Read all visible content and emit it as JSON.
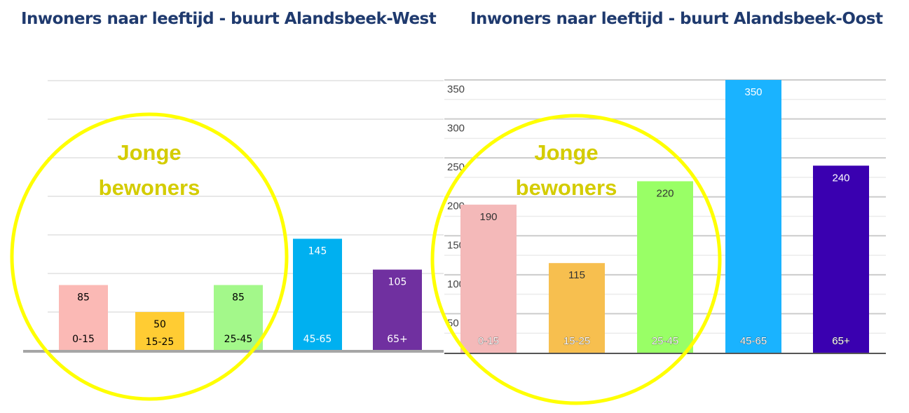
{
  "chart_data": [
    {
      "type": "bar",
      "title": "Inwoners naar leeftijd - buurt Alandsbeek-West",
      "categories": [
        "0-15",
        "15-25",
        "25-45",
        "45-65",
        "65+"
      ],
      "values": [
        85,
        50,
        85,
        145,
        105
      ],
      "colors": [
        "#fbb9b5",
        "#ffcc33",
        "#a3f88a",
        "#00b0f0",
        "#7030a0"
      ],
      "label_colors": [
        "#000000",
        "#000000",
        "#000000",
        "#ffffff",
        "#ffffff"
      ],
      "ylim": [
        0,
        350
      ],
      "gridlines": [
        50,
        100,
        150,
        200,
        250,
        300,
        350
      ],
      "show_ytick_labels": false,
      "annotation": {
        "text_line1": "Jonge",
        "text_line2": "bewoners"
      }
    },
    {
      "type": "bar",
      "title": "Inwoners naar leeftijd - buurt Alandsbeek-Oost",
      "categories": [
        "0-15",
        "15-25",
        "25-45",
        "45-65",
        "65+"
      ],
      "values": [
        190,
        115,
        220,
        350,
        240
      ],
      "colors": [
        "#f4b9b9",
        "#f7bf4f",
        "#99ff66",
        "#1ab3ff",
        "#3a00b0"
      ],
      "label_colors": [
        "#333333",
        "#333333",
        "#333333",
        "#ffffff",
        "#ffffff"
      ],
      "ylim": [
        0,
        350
      ],
      "yticks": [
        50,
        100,
        150,
        200,
        250,
        300,
        350
      ],
      "show_ytick_labels": true,
      "annotation": {
        "text_line1": "Jonge",
        "text_line2": "bewoners"
      }
    }
  ],
  "highlight_color": "#ffff00",
  "annotation_color": "#d4cc00"
}
